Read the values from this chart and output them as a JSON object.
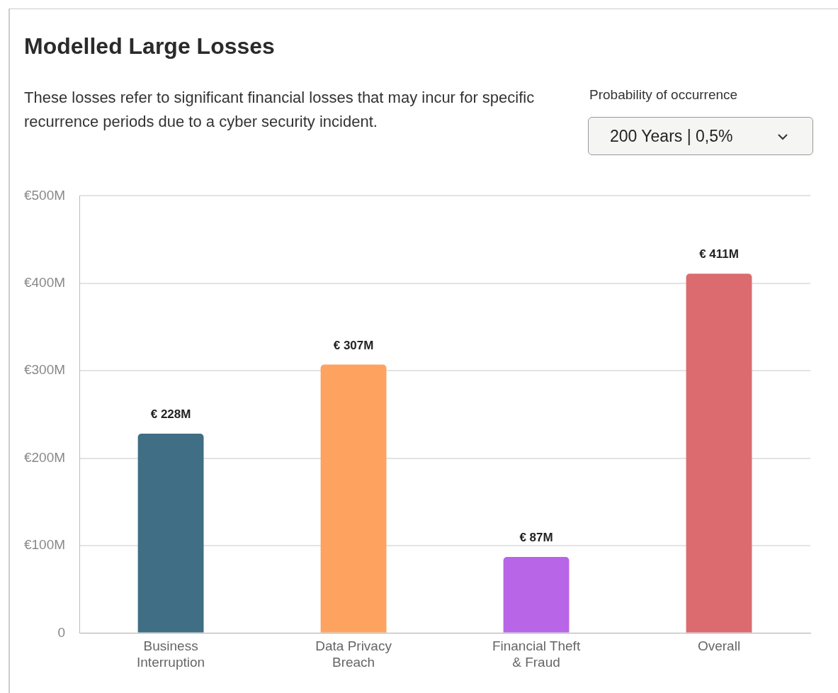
{
  "chart_data": {
    "type": "bar",
    "title": "Modelled Large Losses",
    "subtitle": "These losses refer to significant financial losses that may incur for specific recurrence periods due to a cyber security incident.",
    "annotations": [
      "Probability of occurrence",
      "200 Years | 0,5%"
    ],
    "categories": [
      "Business Interruption",
      "Data Privacy Breach",
      "Financial Theft & Fraud",
      "Overall"
    ],
    "values": [
      228,
      307,
      87,
      411
    ],
    "colors": [
      "#3f6e85",
      "#fda35f",
      "#b865e8",
      "#db6b6e"
    ],
    "value_labels": [
      "€ 228M",
      "€ 307M",
      "€ 87M",
      "€ 411M"
    ],
    "ylim": [
      0,
      500
    ],
    "yticks": [
      0,
      {
        "value": 100,
        "label": "€100M"
      },
      {
        "value": 200,
        "label": "€200M"
      },
      {
        "value": 300,
        "label": "€300M"
      },
      {
        "value": 400,
        "label": "€400M"
      },
      {
        "value": 500,
        "label": "€500M"
      }
    ],
    "grid": "y",
    "legend": false
  }
}
